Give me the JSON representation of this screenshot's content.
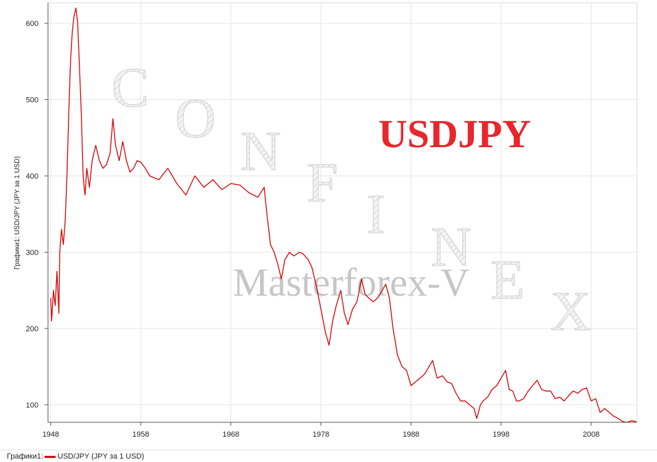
{
  "chart_data": {
    "type": "line",
    "title": "USDJPY",
    "ylabel": "Графики1: USD/JPY (JPY за 1 USD)",
    "xlabel": "",
    "xlim": [
      1947.7,
      2013.1
    ],
    "ylim": [
      77,
      627
    ],
    "x_ticks": [
      1948,
      1958,
      1968,
      1978,
      1988,
      1998,
      2008
    ],
    "y_ticks": [
      100,
      200,
      300,
      400,
      500,
      600
    ],
    "grid": true,
    "legend_position": "bottom-left",
    "watermark_letters": [
      "C",
      "O",
      "N",
      "F",
      "I",
      "N",
      "E",
      "X"
    ],
    "watermark_text": "Masterforex-V",
    "series": [
      {
        "name": "USD/JPY (JPY за 1 USD)",
        "color": "#d40000",
        "points": [
          [
            1948.0,
            240
          ],
          [
            1948.1,
            210
          ],
          [
            1948.3,
            250
          ],
          [
            1948.5,
            230
          ],
          [
            1948.7,
            275
          ],
          [
            1948.9,
            220
          ],
          [
            1949.0,
            300
          ],
          [
            1949.2,
            330
          ],
          [
            1949.4,
            310
          ],
          [
            1949.6,
            340
          ],
          [
            1949.8,
            400
          ],
          [
            1950.0,
            480
          ],
          [
            1950.2,
            550
          ],
          [
            1950.4,
            590
          ],
          [
            1950.6,
            610
          ],
          [
            1950.8,
            620
          ],
          [
            1951.0,
            600
          ],
          [
            1951.2,
            540
          ],
          [
            1951.4,
            480
          ],
          [
            1951.6,
            400
          ],
          [
            1951.8,
            375
          ],
          [
            1952.0,
            410
          ],
          [
            1952.3,
            385
          ],
          [
            1952.6,
            420
          ],
          [
            1953.0,
            440
          ],
          [
            1953.4,
            420
          ],
          [
            1953.8,
            410
          ],
          [
            1954.2,
            415
          ],
          [
            1954.6,
            430
          ],
          [
            1954.9,
            475
          ],
          [
            1955.2,
            440
          ],
          [
            1955.6,
            420
          ],
          [
            1956.0,
            445
          ],
          [
            1956.4,
            420
          ],
          [
            1956.8,
            405
          ],
          [
            1957.2,
            410
          ],
          [
            1957.6,
            420
          ],
          [
            1958.0,
            418
          ],
          [
            1958.5,
            410
          ],
          [
            1959.0,
            400
          ],
          [
            1960.0,
            395
          ],
          [
            1961.0,
            410
          ],
          [
            1962.0,
            390
          ],
          [
            1963.0,
            375
          ],
          [
            1964.0,
            400
          ],
          [
            1965.0,
            385
          ],
          [
            1966.0,
            395
          ],
          [
            1967.0,
            382
          ],
          [
            1968.0,
            390
          ],
          [
            1969.0,
            388
          ],
          [
            1970.0,
            378
          ],
          [
            1971.0,
            372
          ],
          [
            1971.7,
            385
          ],
          [
            1972.0,
            350
          ],
          [
            1972.4,
            310
          ],
          [
            1972.8,
            300
          ],
          [
            1973.2,
            285
          ],
          [
            1973.6,
            265
          ],
          [
            1974.0,
            290
          ],
          [
            1974.5,
            300
          ],
          [
            1975.0,
            295
          ],
          [
            1975.6,
            300
          ],
          [
            1976.0,
            298
          ],
          [
            1976.6,
            290
          ],
          [
            1977.0,
            280
          ],
          [
            1977.5,
            255
          ],
          [
            1978.0,
            225
          ],
          [
            1978.5,
            195
          ],
          [
            1978.9,
            178
          ],
          [
            1979.3,
            210
          ],
          [
            1979.7,
            230
          ],
          [
            1980.2,
            250
          ],
          [
            1980.6,
            220
          ],
          [
            1981.0,
            205
          ],
          [
            1981.5,
            225
          ],
          [
            1982.0,
            235
          ],
          [
            1982.5,
            265
          ],
          [
            1982.9,
            245
          ],
          [
            1983.3,
            240
          ],
          [
            1983.8,
            235
          ],
          [
            1984.3,
            240
          ],
          [
            1984.8,
            250
          ],
          [
            1985.2,
            258
          ],
          [
            1985.6,
            240
          ],
          [
            1986.0,
            200
          ],
          [
            1986.5,
            165
          ],
          [
            1987.0,
            150
          ],
          [
            1987.5,
            145
          ],
          [
            1988.0,
            125
          ],
          [
            1988.5,
            130
          ],
          [
            1989.0,
            135
          ],
          [
            1989.5,
            140
          ],
          [
            1990.0,
            150
          ],
          [
            1990.4,
            158
          ],
          [
            1990.9,
            135
          ],
          [
            1991.5,
            138
          ],
          [
            1992.0,
            130
          ],
          [
            1992.5,
            128
          ],
          [
            1993.0,
            115
          ],
          [
            1993.5,
            105
          ],
          [
            1994.0,
            105
          ],
          [
            1994.5,
            100
          ],
          [
            1995.0,
            95
          ],
          [
            1995.3,
            82
          ],
          [
            1995.7,
            100
          ],
          [
            1996.0,
            105
          ],
          [
            1996.5,
            110
          ],
          [
            1997.0,
            120
          ],
          [
            1997.5,
            125
          ],
          [
            1998.0,
            135
          ],
          [
            1998.5,
            145
          ],
          [
            1998.9,
            120
          ],
          [
            1999.3,
            118
          ],
          [
            1999.7,
            105
          ],
          [
            2000.0,
            105
          ],
          [
            2000.5,
            108
          ],
          [
            2001.0,
            118
          ],
          [
            2001.5,
            125
          ],
          [
            2002.0,
            132
          ],
          [
            2002.5,
            120
          ],
          [
            2003.0,
            118
          ],
          [
            2003.5,
            118
          ],
          [
            2004.0,
            108
          ],
          [
            2004.5,
            110
          ],
          [
            2005.0,
            105
          ],
          [
            2005.5,
            112
          ],
          [
            2006.0,
            118
          ],
          [
            2006.5,
            115
          ],
          [
            2007.0,
            120
          ],
          [
            2007.5,
            122
          ],
          [
            2008.0,
            105
          ],
          [
            2008.5,
            108
          ],
          [
            2009.0,
            90
          ],
          [
            2009.5,
            95
          ],
          [
            2010.0,
            90
          ],
          [
            2010.5,
            85
          ],
          [
            2011.0,
            82
          ],
          [
            2011.5,
            78
          ],
          [
            2012.0,
            77
          ],
          [
            2012.5,
            79
          ],
          [
            2013.0,
            78
          ]
        ]
      }
    ]
  },
  "legend": {
    "prefix": "Графики1:",
    "label": "USD/JPY (JPY за 1 USD)"
  }
}
